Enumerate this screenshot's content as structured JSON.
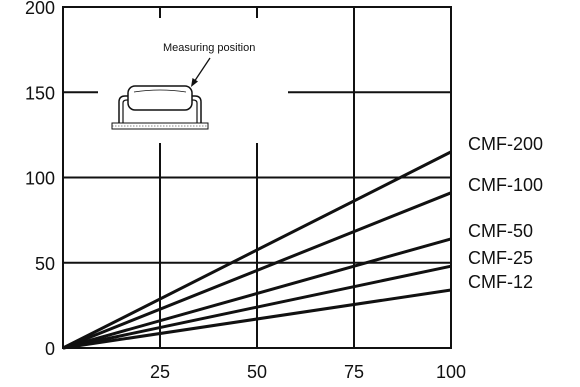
{
  "chart_data": {
    "type": "line",
    "title": "",
    "xlabel": "",
    "ylabel": "",
    "xlim": [
      0,
      100
    ],
    "ylim": [
      0,
      200
    ],
    "x_ticks": [
      25,
      50,
      75,
      100
    ],
    "x_tick_labels": [
      "25",
      "50",
      "75",
      "100"
    ],
    "y_ticks": [
      0,
      50,
      100,
      150,
      200
    ],
    "y_tick_labels": [
      "0",
      "50",
      "100",
      "150",
      "200"
    ],
    "grid": true,
    "series": [
      {
        "name": "CMF-200",
        "x": [
          0,
          100
        ],
        "y": [
          0,
          115
        ]
      },
      {
        "name": "CMF-100",
        "x": [
          0,
          100
        ],
        "y": [
          0,
          91
        ]
      },
      {
        "name": "CMF-50",
        "x": [
          0,
          100
        ],
        "y": [
          0,
          64
        ]
      },
      {
        "name": "CMF-25",
        "x": [
          0,
          100
        ],
        "y": [
          0,
          48
        ]
      },
      {
        "name": "CMF-12",
        "x": [
          0,
          100
        ],
        "y": [
          0,
          34
        ]
      }
    ],
    "legend_placement": "right",
    "annotation": {
      "text": "Measuring position",
      "icon": "resistor-on-heatsink-icon"
    },
    "colors": {
      "line": "#111111",
      "grid": "#111111",
      "background": "#ffffff"
    }
  }
}
